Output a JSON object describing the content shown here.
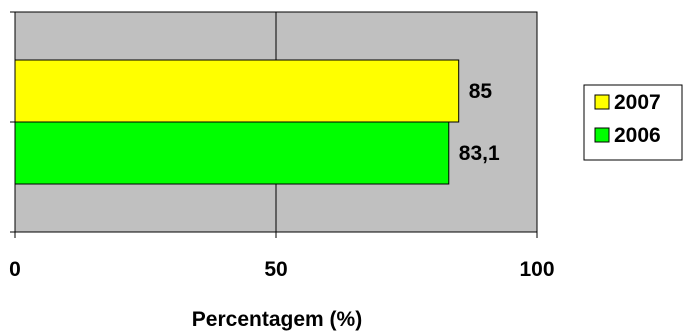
{
  "chart_data": {
    "type": "bar",
    "orientation": "horizontal",
    "categories": [
      ""
    ],
    "series": [
      {
        "name": "2007",
        "values": [
          85
        ],
        "value_labels": [
          "85"
        ],
        "color": "#ffff00"
      },
      {
        "name": "2006",
        "values": [
          83.1
        ],
        "value_labels": [
          "83,1"
        ],
        "color": "#00ff00"
      }
    ],
    "xlabel": "Percentagem (%)",
    "ylabel": "",
    "xlim": [
      0,
      100
    ],
    "x_ticks": [
      0,
      50,
      100
    ],
    "x_tick_labels": [
      "0",
      "50",
      "100"
    ],
    "grid": true,
    "legend_position": "right",
    "plot_background": "#c0c0c0"
  }
}
